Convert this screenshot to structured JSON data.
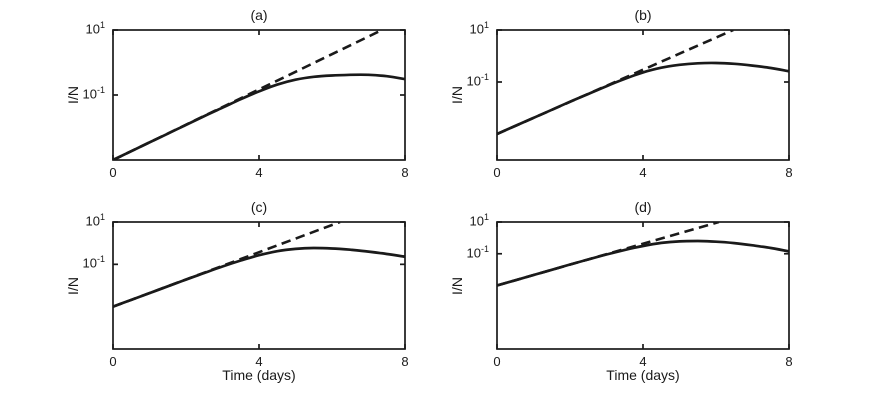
{
  "figure": {
    "background": "#ffffff",
    "ink": "#1a1a1a"
  },
  "chart_data": [
    {
      "type": "line",
      "title": "(a)",
      "ylabel": "I/N",
      "xlabel": "",
      "x_scale": "linear",
      "y_scale": "log",
      "xlim": [
        0,
        8
      ],
      "ylim": [
        0.001,
        10
      ],
      "x_ticks": [
        0,
        4,
        8
      ],
      "y_ticks": [
        {
          "value": 10,
          "base": "10",
          "exp": "1"
        },
        {
          "value": 0.1,
          "base": "10",
          "exp": "-1"
        }
      ],
      "grid": false,
      "legend": null,
      "series": [
        {
          "name": "dashed-exponential-growth",
          "style": "dashed",
          "x": [
            0,
            7.37
          ],
          "y": [
            0.001,
            10
          ]
        },
        {
          "name": "solid-epidemic-curve",
          "style": "solid",
          "x": [
            0,
            0.5,
            1,
            1.5,
            2,
            2.5,
            3,
            3.5,
            4,
            4.5,
            5,
            5.5,
            6,
            6.5,
            7,
            7.5,
            8
          ],
          "y": [
            0.001,
            0.00186,
            0.00347,
            0.00646,
            0.012,
            0.0224,
            0.0407,
            0.0741,
            0.129,
            0.209,
            0.295,
            0.363,
            0.398,
            0.417,
            0.417,
            0.38,
            0.309
          ]
        }
      ]
    },
    {
      "type": "line",
      "title": "(b)",
      "ylabel": "I/N",
      "xlabel": "",
      "x_scale": "linear",
      "y_scale": "log",
      "xlim": [
        0,
        8
      ],
      "ylim": [
        0.0001,
        10
      ],
      "x_ticks": [
        0,
        4,
        8
      ],
      "y_ticks": [
        {
          "value": 10,
          "base": "10",
          "exp": "1"
        },
        {
          "value": 0.1,
          "base": "10",
          "exp": "-1"
        }
      ],
      "grid": false,
      "legend": null,
      "series": [
        {
          "name": "dashed-exponential-growth",
          "style": "dashed",
          "x": [
            0,
            6.47
          ],
          "y": [
            0.001,
            10
          ]
        },
        {
          "name": "solid-epidemic-curve",
          "style": "solid",
          "x": [
            0,
            0.5,
            1,
            1.5,
            2,
            2.5,
            3,
            3.5,
            4,
            4.5,
            5,
            5.5,
            6,
            6.5,
            7,
            7.5,
            8
          ],
          "y": [
            0.001,
            0.00204,
            0.00417,
            0.00851,
            0.0174,
            0.0347,
            0.0692,
            0.132,
            0.234,
            0.355,
            0.457,
            0.525,
            0.537,
            0.501,
            0.427,
            0.347,
            0.257
          ]
        }
      ]
    },
    {
      "type": "line",
      "title": "(c)",
      "ylabel": "I/N",
      "xlabel": "Time (days)",
      "x_scale": "linear",
      "y_scale": "log",
      "xlim": [
        0,
        8
      ],
      "ylim": [
        1e-05,
        10
      ],
      "x_ticks": [
        0,
        4,
        8
      ],
      "y_ticks": [
        {
          "value": 10,
          "base": "10",
          "exp": "1"
        },
        {
          "value": 0.1,
          "base": "10",
          "exp": "-1"
        }
      ],
      "grid": false,
      "legend": null,
      "series": [
        {
          "name": "dashed-exponential-growth",
          "style": "dashed",
          "x": [
            0,
            6.22
          ],
          "y": [
            0.001,
            10
          ]
        },
        {
          "name": "solid-epidemic-curve",
          "style": "solid",
          "x": [
            0,
            0.5,
            1,
            1.5,
            2,
            2.5,
            3,
            3.5,
            4,
            4.5,
            5,
            5.5,
            6,
            6.5,
            7,
            7.5,
            8
          ],
          "y": [
            0.001,
            0.00209,
            0.00437,
            0.00912,
            0.0191,
            0.0389,
            0.0794,
            0.151,
            0.269,
            0.417,
            0.537,
            0.589,
            0.562,
            0.49,
            0.398,
            0.309,
            0.229
          ]
        }
      ]
    },
    {
      "type": "line",
      "title": "(d)",
      "ylabel": "I/N",
      "xlabel": "Time (days)",
      "x_scale": "linear",
      "y_scale": "log",
      "xlim": [
        0,
        8
      ],
      "ylim": [
        1e-07,
        10
      ],
      "x_ticks": [
        0,
        4,
        8
      ],
      "y_ticks": [
        {
          "value": 10,
          "base": "10",
          "exp": "1"
        },
        {
          "value": 0.1,
          "base": "10",
          "exp": "-1"
        }
      ],
      "grid": false,
      "legend": null,
      "series": [
        {
          "name": "dashed-exponential-growth",
          "style": "dashed",
          "x": [
            0,
            6.08
          ],
          "y": [
            0.001,
            10
          ]
        },
        {
          "name": "solid-epidemic-curve",
          "style": "solid",
          "x": [
            0,
            0.5,
            1,
            1.5,
            2,
            2.5,
            3,
            3.5,
            4,
            4.5,
            5,
            5.5,
            6,
            6.5,
            7,
            7.5,
            8
          ],
          "y": [
            0.001,
            0.00214,
            0.00457,
            0.00977,
            0.0209,
            0.0437,
            0.0891,
            0.174,
            0.309,
            0.479,
            0.603,
            0.631,
            0.575,
            0.468,
            0.339,
            0.229,
            0.141
          ]
        }
      ]
    }
  ]
}
